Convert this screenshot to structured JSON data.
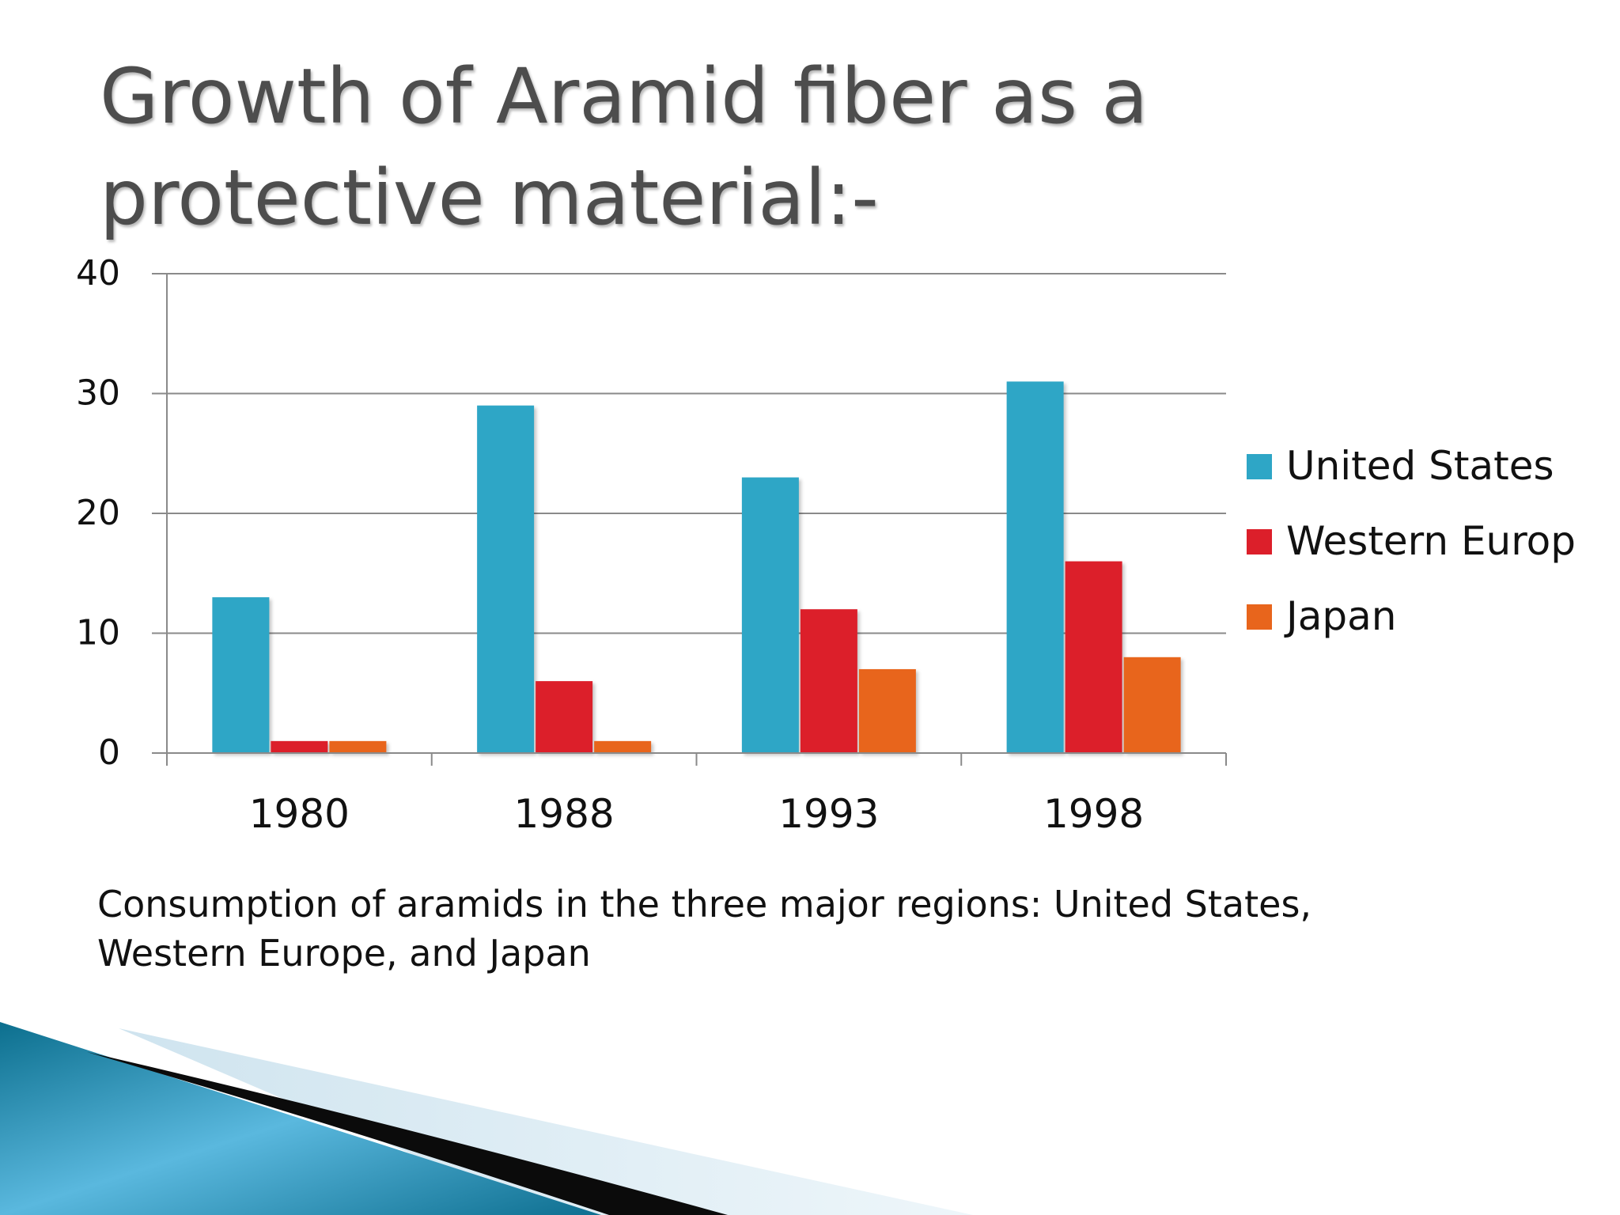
{
  "slide": {
    "title_line1": "Growth of Aramid fiber as a",
    "title_line2": "protective material:-",
    "caption_line1": "Consumption of aramids in the three major regions: United States,",
    "caption_line2": "Western Europe, and Japan"
  },
  "chart_data": {
    "type": "bar",
    "categories": [
      "1980",
      "1988",
      "1993",
      "1998"
    ],
    "series": [
      {
        "name": "United States",
        "values": [
          13,
          29,
          23,
          31
        ],
        "color": "#2ea6c6"
      },
      {
        "name": "Western Europ",
        "values": [
          1,
          6,
          12,
          16
        ],
        "color": "#dc1f2a"
      },
      {
        "name": "Japan",
        "values": [
          1,
          1,
          7,
          8
        ],
        "color": "#e8651c"
      }
    ],
    "ylim": [
      0,
      40
    ],
    "yticks": [
      "0",
      "10",
      "20",
      "30",
      "40"
    ],
    "grid": true,
    "legend": "right"
  }
}
